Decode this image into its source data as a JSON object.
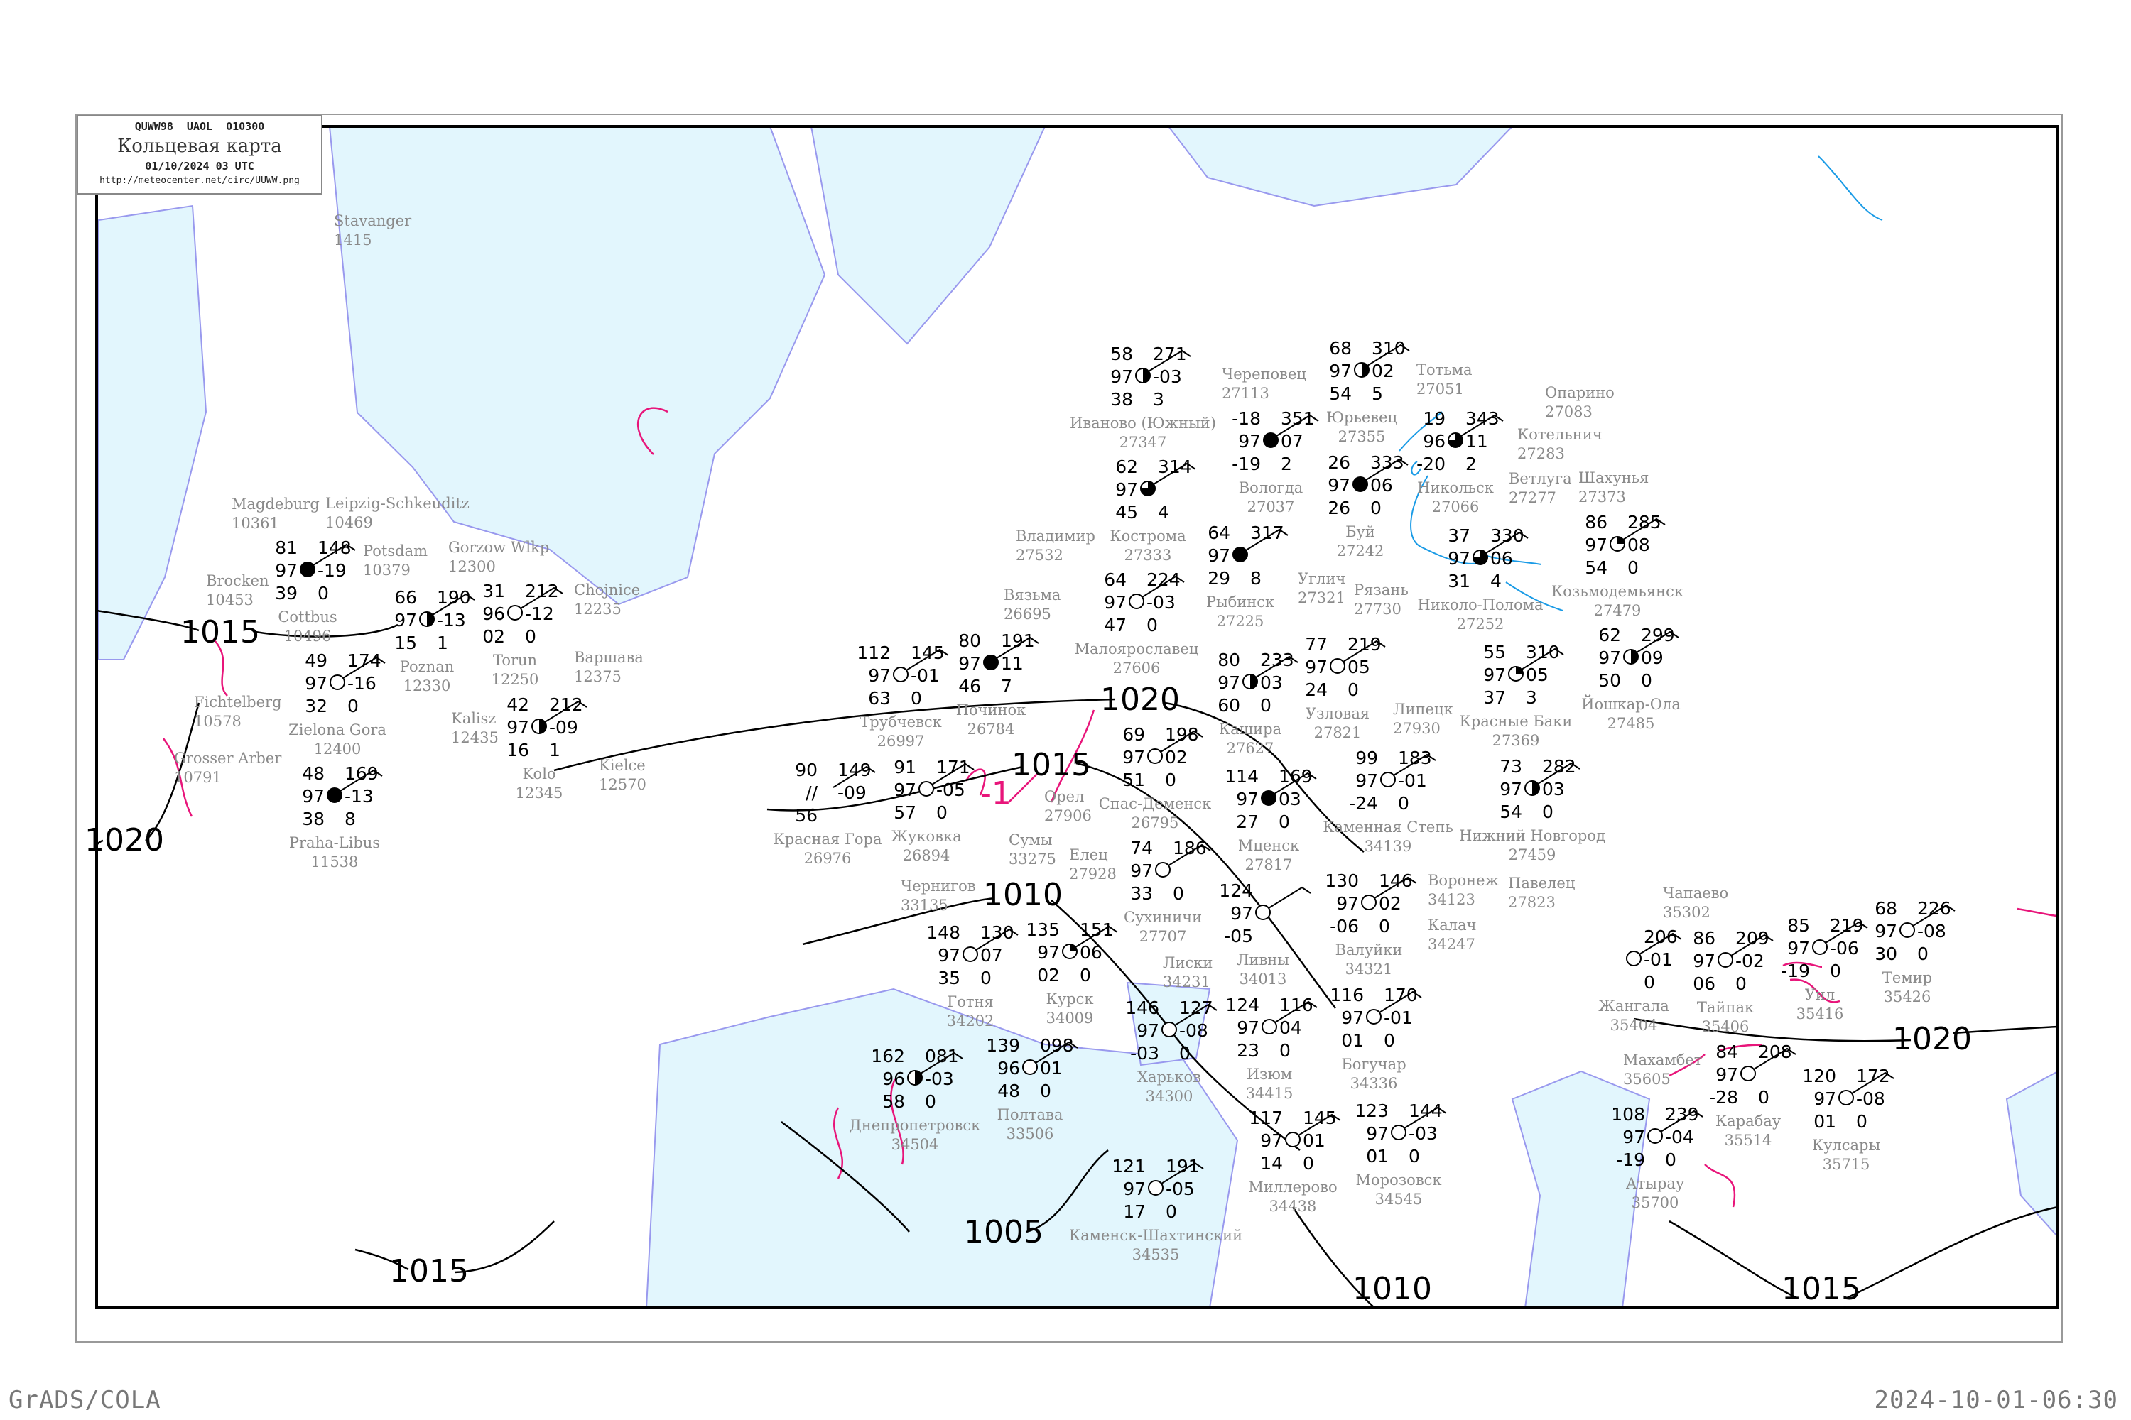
{
  "header": {
    "code": "QUWW98  UAOL  010300",
    "title": "Кольцевая карта",
    "datetime": "01/10/2024 03 UTC",
    "url": "http://meteocenter.net/circ/UUWW.png"
  },
  "footer": {
    "left": "GrADS/COLA",
    "right": "2024-10-01-06:30"
  },
  "colors": {
    "water": "#e2f6fd",
    "coast": "#9999ee",
    "isobar": "#000000",
    "isallobar": "#e8157a",
    "isotherm": "#1a9be6",
    "station_name": "#8a8a8a"
  },
  "isobar_labels": [
    "1020",
    "1015",
    "1010",
    "1020",
    "1005",
    "1015",
    "1010",
    "1020",
    "1015",
    "1015"
  ],
  "isallobar_label": "-1",
  "stations": [
    {
      "name": "Починок",
      "id": "26784",
      "l": [
        "80",
        "97",
        "46"
      ],
      "r": [
        "191",
        "11",
        "7"
      ],
      "cover": 1
    },
    {
      "name": "Спас-Деменск",
      "id": "26795",
      "l": [
        "69",
        "97",
        "51"
      ],
      "r": [
        "198",
        "02",
        "0"
      ],
      "cover": 0
    },
    {
      "name": "Малоярославец",
      "id": "27606",
      "l": [
        "64",
        "97",
        "47"
      ],
      "r": [
        "224",
        "-03",
        "0"
      ],
      "cover": 0
    },
    {
      "name": "Кашира",
      "id": "27627",
      "l": [
        "80",
        "97",
        "60"
      ],
      "r": [
        "233",
        "03",
        "0"
      ],
      "cover": 0.5
    },
    {
      "name": "Сухиничи",
      "id": "27707",
      "l": [
        "74",
        "97",
        "33"
      ],
      "r": [
        "186",
        "",
        "0"
      ],
      "cover": 0
    },
    {
      "name": "Жуковка",
      "id": "26894",
      "l": [
        "91",
        "97",
        "57"
      ],
      "r": [
        "171",
        "-05",
        "0"
      ],
      "cover": 0
    },
    {
      "name": "Трубчевск",
      "id": "26997",
      "l": [
        "112",
        "97",
        "63"
      ],
      "r": [
        "145",
        "-01",
        "0"
      ],
      "cover": 0
    },
    {
      "name": "Мценск",
      "id": "27817",
      "l": [
        "114",
        "97",
        "27"
      ],
      "r": [
        "169",
        "03",
        "0"
      ],
      "cover": 1
    },
    {
      "name": "Курск",
      "id": "34009",
      "l": [
        "135",
        "97",
        "02"
      ],
      "r": [
        "151",
        "06",
        "0"
      ],
      "cover": 0.25
    },
    {
      "name": "Красная Гора",
      "id": "26976",
      "l": [
        "90",
        "//",
        "56"
      ],
      "r": [
        "149",
        "-09",
        ""
      ],
      "cover": -1
    },
    {
      "name": "Узловая",
      "id": "27821",
      "l": [
        "77",
        "97",
        "24"
      ],
      "r": [
        "219",
        "05",
        "0"
      ],
      "cover": 0
    },
    {
      "name": "Ливны",
      "id": "34013",
      "l": [
        "124",
        "97",
        "-05"
      ],
      "r": [
        "",
        "",
        ""
      ],
      "cover": 0
    },
    {
      "name": "Готня",
      "id": "34202",
      "l": [
        "148",
        "97",
        "35"
      ],
      "r": [
        "130",
        "07",
        "0"
      ],
      "cover": 0
    },
    {
      "name": "Полтава",
      "id": "33506",
      "l": [
        "139",
        "96",
        "48"
      ],
      "r": [
        "098",
        "01",
        "0"
      ],
      "cover": 0
    },
    {
      "name": "Харьков",
      "id": "34300",
      "l": [
        "146",
        "97",
        "-03"
      ],
      "r": [
        "127",
        "-08",
        "0"
      ],
      "cover": 0
    },
    {
      "name": "Изюм",
      "id": "34415",
      "l": [
        "124",
        "97",
        "23"
      ],
      "r": [
        "116",
        "04",
        "0"
      ],
      "cover": 0
    },
    {
      "name": "Валуйки",
      "id": "34321",
      "l": [
        "130",
        "97",
        "-06"
      ],
      "r": [
        "146",
        "02",
        "0"
      ],
      "cover": 0
    },
    {
      "name": "Днепропетровск",
      "id": "34504",
      "l": [
        "162",
        "96",
        "58"
      ],
      "r": [
        "081",
        "-03",
        "0"
      ],
      "cover": 0.5
    },
    {
      "name": "Богучар",
      "id": "34336",
      "l": [
        "116",
        "97",
        "01"
      ],
      "r": [
        "170",
        "-01",
        "0"
      ],
      "cover": 0
    },
    {
      "name": "Миллерово",
      "id": "34438",
      "l": [
        "117",
        "97",
        "14"
      ],
      "r": [
        "145",
        "01",
        "0"
      ],
      "cover": 0
    },
    {
      "name": "Каменск-Шахтинский",
      "id": "34535",
      "l": [
        "121",
        "97",
        "17"
      ],
      "r": [
        "191",
        "-05",
        "0"
      ],
      "cover": 0
    },
    {
      "name": "Морозовск",
      "id": "34545",
      "l": [
        "123",
        "97",
        "01"
      ],
      "r": [
        "144",
        "-03",
        "0"
      ],
      "cover": 0
    },
    {
      "name": "Каменная Степь",
      "id": "34139",
      "l": [
        "99",
        "97",
        "-24"
      ],
      "r": [
        "183",
        "-01",
        "0"
      ],
      "cover": 0
    },
    {
      "name": "Жангала",
      "id": "35404",
      "l": [
        "",
        "",
        ""
      ],
      "r": [
        "206",
        "-01",
        "0"
      ],
      "cover": 0
    },
    {
      "name": "Тайпак",
      "id": "35406",
      "l": [
        "86",
        "97",
        "06"
      ],
      "r": [
        "209",
        "-02",
        "0"
      ],
      "cover": 0
    },
    {
      "name": "Карабау",
      "id": "35514",
      "l": [
        "84",
        "97",
        "-28"
      ],
      "r": [
        "208",
        "",
        "0"
      ],
      "cover": 0
    },
    {
      "name": "Уил",
      "id": "35416",
      "l": [
        "85",
        "97",
        "-19"
      ],
      "r": [
        "219",
        "-06",
        "0"
      ],
      "cover": 0
    },
    {
      "name": "Темир",
      "id": "35426",
      "l": [
        "68",
        "97",
        "30"
      ],
      "r": [
        "226",
        "-08",
        "0"
      ],
      "cover": 0
    },
    {
      "name": "Атырау",
      "id": "35700",
      "l": [
        "108",
        "97",
        "-19"
      ],
      "r": [
        "239",
        "-04",
        "0"
      ],
      "cover": 0
    },
    {
      "name": "Кулсары",
      "id": "35715",
      "l": [
        "120",
        "97",
        "01"
      ],
      "r": [
        "172",
        "-08",
        "0"
      ],
      "cover": 0
    },
    {
      "name": "Вологда",
      "id": "27037",
      "l": [
        "-18",
        "97",
        "-19"
      ],
      "r": [
        "351",
        "07",
        "2"
      ],
      "cover": 1
    },
    {
      "name": "Рыбинск",
      "id": "27225",
      "l": [
        "64",
        "97",
        "29"
      ],
      "r": [
        "317",
        "",
        "8"
      ],
      "cover": 1
    },
    {
      "name": "Буй",
      "id": "27242",
      "l": [
        "26",
        "97",
        "26"
      ],
      "r": [
        "333",
        "06",
        "0"
      ],
      "cover": 1
    },
    {
      "name": "Никольск",
      "id": "27066",
      "l": [
        "19",
        "96",
        "-20"
      ],
      "r": [
        "343",
        "11",
        "2"
      ],
      "cover": 0.75
    },
    {
      "name": "Кострома",
      "id": "27333",
      "l": [
        "62",
        "97",
        "45"
      ],
      "r": [
        "314",
        "",
        "4"
      ],
      "cover": 0.75
    },
    {
      "name": "Николо-Полома",
      "id": "27252",
      "l": [
        "37",
        "97",
        "31"
      ],
      "r": [
        "330",
        "06",
        "4"
      ],
      "cover": 0.75
    },
    {
      "name": "Юрьевец",
      "id": "27355",
      "l": [
        "68",
        "97",
        "54"
      ],
      "r": [
        "310",
        "02",
        "5"
      ],
      "cover": 0.5
    },
    {
      "name": "Иваново (Южный)",
      "id": "27347",
      "l": [
        "58",
        "97",
        "38"
      ],
      "r": [
        "271",
        "-03",
        "3"
      ],
      "cover": 0.5
    },
    {
      "name": "Красные Баки",
      "id": "27369",
      "l": [
        "55",
        "97",
        "37"
      ],
      "r": [
        "310",
        "05",
        "3"
      ],
      "cover": 0.25
    },
    {
      "name": "Нижний Новгород",
      "id": "27459",
      "l": [
        "73",
        "97",
        "54"
      ],
      "r": [
        "282",
        "03",
        "0"
      ],
      "cover": 0.5
    },
    {
      "name": "Козьмодемьянск",
      "id": "27479",
      "l": [
        "86",
        "97",
        "54"
      ],
      "r": [
        "285",
        "08",
        "0"
      ],
      "cover": 0.25
    },
    {
      "name": "Йошкар-Ола",
      "id": "27485",
      "l": [
        "62",
        "97",
        "50"
      ],
      "r": [
        "299",
        "09",
        "0"
      ],
      "cover": 0.5
    },
    {
      "name": "Poznan",
      "id": "12330",
      "l": [
        "66",
        "97",
        "15"
      ],
      "r": [
        "190",
        "-13",
        "1"
      ],
      "cover": 0.5
    },
    {
      "name": "Torun",
      "id": "12250",
      "l": [
        "31",
        "96",
        "02"
      ],
      "r": [
        "212",
        "-12",
        "0"
      ],
      "cover": 0
    },
    {
      "name": "Kolo",
      "id": "12345",
      "l": [
        "42",
        "97",
        "16"
      ],
      "r": [
        "212",
        "-09",
        "1"
      ],
      "cover": 0.5
    },
    {
      "name": "Zielona Gora",
      "id": "12400",
      "l": [
        "49",
        "97",
        "32"
      ],
      "r": [
        "174",
        "-16",
        "0"
      ],
      "cover": 0
    },
    {
      "name": "Cottbus",
      "id": "10496",
      "l": [
        "81",
        "97",
        "39"
      ],
      "r": [
        "148",
        "-19",
        "0"
      ],
      "cover": 1
    },
    {
      "name": "Praha-Libus",
      "id": "11538",
      "l": [
        "48",
        "97",
        "38"
      ],
      "r": [
        "169",
        "-13",
        "8"
      ],
      "cover": 1
    }
  ],
  "labels_only": [
    {
      "name": "Орел",
      "id": "27906"
    },
    {
      "name": "Елец",
      "id": "27928"
    },
    {
      "name": "Липецк",
      "id": "27930"
    },
    {
      "name": "Сумы",
      "id": "33275"
    },
    {
      "name": "Лиски",
      "id": "34231"
    },
    {
      "name": "Воронеж",
      "id": "34123"
    },
    {
      "name": "Калач",
      "id": "34247"
    },
    {
      "name": "Тотьма",
      "id": "27051"
    },
    {
      "name": "Череповец",
      "id": "27113"
    },
    {
      "name": "Углич",
      "id": "27321"
    },
    {
      "name": "Ветлуга",
      "id": "27277"
    },
    {
      "name": "Шахунья",
      "id": "27373"
    },
    {
      "name": "Котельнич",
      "id": "27283"
    },
    {
      "name": "Владимир",
      "id": "27532"
    },
    {
      "name": "Опарино",
      "id": "27083"
    },
    {
      "name": "Brocken",
      "id": "10453"
    },
    {
      "name": "Magdeburg",
      "id": "10361"
    },
    {
      "name": "Potsdam",
      "id": "10379"
    },
    {
      "name": "Leipzig-Schkeuditz",
      "id": "10469"
    },
    {
      "name": "Fichtelberg",
      "id": "10578"
    },
    {
      "name": "Gorzow Wlkp",
      "id": "12300"
    },
    {
      "name": "Chojnice",
      "id": "12235"
    },
    {
      "name": "Kalisz",
      "id": "12435"
    },
    {
      "name": "Варшава",
      "id": "12375"
    },
    {
      "name": "Kielce",
      "id": "12570"
    },
    {
      "name": "Grosser Arber",
      "id": "10791"
    },
    {
      "name": "Stavanger",
      "id": "1415"
    },
    {
      "name": "Павелец",
      "id": "27823"
    },
    {
      "name": "Рязань",
      "id": "27730"
    },
    {
      "name": "Вязьма",
      "id": "26695"
    },
    {
      "name": "Чернигов",
      "id": "33135"
    },
    {
      "name": "Махамбет",
      "id": "35605"
    },
    {
      "name": "Чапаево",
      "id": "35302"
    }
  ]
}
